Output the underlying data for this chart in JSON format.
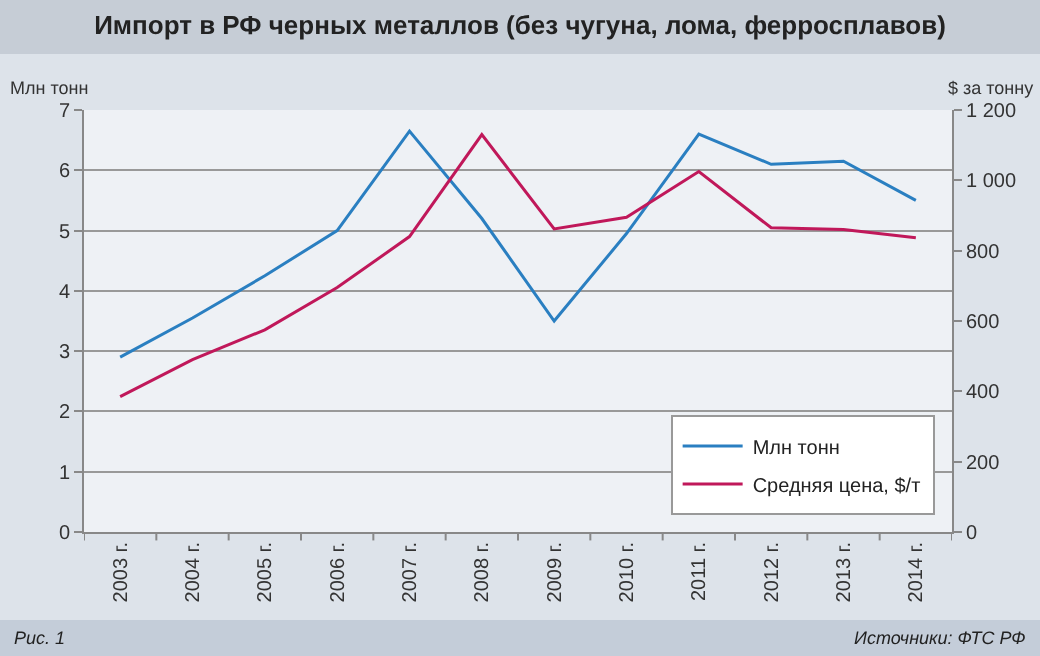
{
  "chart_data": {
    "type": "line",
    "title": "Импорт в РФ черных металлов (без чугуна, лома, ферросплавов)",
    "ylabel": "Млн тонн",
    "y2label": "$ за тонну",
    "categories": [
      "2003 г.",
      "2004 г.",
      "2005 г.",
      "2006 г.",
      "2007 г.",
      "2008 г.",
      "2009 г.",
      "2010 г.",
      "2011 г.",
      "2012 г.",
      "2013 г.",
      "2014 г."
    ],
    "series": [
      {
        "name": "Млн тонн",
        "color": "#2a7fc1",
        "values": [
          2.9,
          3.55,
          4.25,
          5.0,
          6.65,
          5.2,
          3.5,
          4.95,
          6.6,
          6.1,
          6.15,
          5.5
        ]
      },
      {
        "name": "Средняя цена, $/т",
        "color": "#c0185a",
        "axis": "y2",
        "values": [
          385,
          490,
          575,
          695,
          840,
          1130,
          862,
          895,
          1025,
          865,
          860,
          837
        ]
      }
    ],
    "ylim": [
      0,
      7
    ],
    "yticks": [
      0,
      1,
      2,
      3,
      4,
      5,
      6,
      7
    ],
    "y2lim": [
      0,
      1200
    ],
    "y2ticks": [
      0,
      200,
      400,
      600,
      800,
      {
        "value": 1000,
        "label": "1 000"
      },
      {
        "value": 1200,
        "label": "1 200"
      }
    ],
    "grid": "y",
    "legend": "bottom right",
    "marker": "none",
    "line_style": "solid",
    "annotations": [
      "Рис. 1",
      "Источники: ФТС РФ"
    ]
  }
}
